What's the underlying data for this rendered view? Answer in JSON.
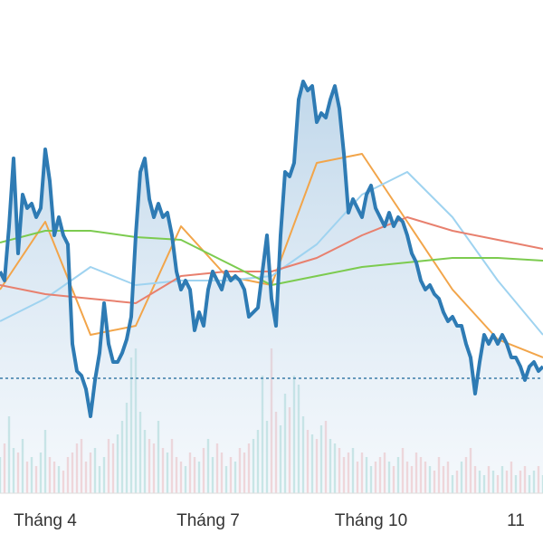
{
  "chart_data": {
    "type": "line",
    "xlim": [
      0,
      120
    ],
    "ylim": [
      0,
      545
    ],
    "y2lim": [
      0,
      545
    ],
    "xticks": [
      {
        "value": 10,
        "label": "Tháng 4"
      },
      {
        "value": 46,
        "label": "Tháng 7"
      },
      {
        "value": 82,
        "label": "Tháng 10"
      },
      {
        "value": 114,
        "label": "11"
      }
    ],
    "reference_line": 127,
    "series": [
      {
        "color": "#2e7bb4",
        "fill": true,
        "x": [
          0,
          1,
          2,
          3,
          4,
          5,
          6,
          7,
          8,
          9,
          10,
          11,
          12,
          13,
          14,
          15,
          16,
          17,
          18,
          19,
          20,
          21,
          22,
          23,
          24,
          25,
          26,
          27,
          28,
          29,
          30,
          31,
          32,
          33,
          34,
          35,
          36,
          37,
          38,
          39,
          40,
          41,
          42,
          43,
          44,
          45,
          46,
          47,
          48,
          49,
          50,
          51,
          52,
          53,
          54,
          55,
          56,
          57,
          58,
          59,
          60,
          61,
          62,
          63,
          64,
          65,
          66,
          67,
          68,
          69,
          70,
          71,
          72,
          73,
          74,
          75,
          76,
          77,
          78,
          79,
          80,
          81,
          82,
          83,
          84,
          85,
          86,
          87,
          88,
          89,
          90,
          91,
          92,
          93,
          94,
          95,
          96,
          97,
          98,
          99,
          100,
          101,
          102,
          103,
          104,
          105,
          106,
          107,
          108,
          109,
          110,
          111,
          112,
          113,
          114,
          115,
          116,
          117,
          118,
          119,
          120
        ],
        "values": [
          245,
          235,
          295,
          370,
          265,
          330,
          315,
          320,
          305,
          315,
          380,
          345,
          285,
          305,
          285,
          275,
          165,
          135,
          130,
          115,
          85,
          125,
          155,
          210,
          165,
          145,
          145,
          155,
          170,
          195,
          285,
          355,
          370,
          325,
          305,
          320,
          305,
          310,
          285,
          245,
          225,
          235,
          225,
          180,
          200,
          185,
          225,
          245,
          235,
          225,
          245,
          235,
          240,
          235,
          225,
          195,
          200,
          205,
          245,
          285,
          215,
          185,
          285,
          355,
          350,
          365,
          435,
          455,
          445,
          450,
          410,
          420,
          415,
          435,
          450,
          425,
          375,
          310,
          325,
          315,
          305,
          330,
          340,
          315,
          305,
          295,
          310,
          295,
          305,
          300,
          285,
          265,
          255,
          235,
          225,
          230,
          220,
          215,
          200,
          190,
          195,
          185,
          185,
          165,
          150,
          110,
          145,
          175,
          165,
          175,
          165,
          175,
          165,
          150,
          150,
          140,
          125,
          140,
          145,
          135,
          140
        ]
      },
      {
        "color": "#f2a54a",
        "x": [
          0,
          10,
          20,
          30,
          40,
          50,
          60,
          70,
          80,
          90,
          100,
          110,
          120
        ],
        "values": [
          225,
          300,
          175,
          185,
          295,
          240,
          230,
          365,
          375,
          300,
          225,
          170,
          150
        ]
      },
      {
        "color": "#9fd3f0",
        "x": [
          0,
          10,
          20,
          30,
          40,
          50,
          60,
          70,
          80,
          90,
          100,
          110,
          120
        ],
        "values": [
          190,
          215,
          250,
          230,
          235,
          235,
          240,
          275,
          330,
          355,
          305,
          235,
          175
        ]
      },
      {
        "color": "#e8806e",
        "x": [
          0,
          10,
          20,
          30,
          40,
          50,
          60,
          70,
          80,
          90,
          100,
          110,
          120
        ],
        "values": [
          230,
          220,
          215,
          210,
          240,
          245,
          245,
          260,
          285,
          305,
          290,
          280,
          270
        ]
      },
      {
        "color": "#7ccb4f",
        "x": [
          0,
          10,
          20,
          30,
          40,
          50,
          60,
          70,
          80,
          90,
          100,
          110,
          120
        ],
        "values": [
          277,
          290,
          290,
          283,
          280,
          255,
          230,
          240,
          250,
          255,
          260,
          260,
          257
        ]
      }
    ],
    "volume": {
      "up_color": "#8fd0c8",
      "down_color": "#f2a9a9",
      "values": [
        40,
        55,
        85,
        50,
        45,
        60,
        35,
        40,
        30,
        45,
        70,
        40,
        35,
        30,
        25,
        40,
        45,
        55,
        60,
        35,
        45,
        50,
        30,
        40,
        60,
        55,
        65,
        80,
        100,
        150,
        160,
        90,
        70,
        60,
        55,
        80,
        50,
        45,
        60,
        40,
        35,
        30,
        45,
        40,
        35,
        50,
        60,
        40,
        55,
        45,
        30,
        40,
        35,
        50,
        45,
        55,
        60,
        70,
        130,
        80,
        160,
        90,
        75,
        110,
        95,
        130,
        120,
        85,
        70,
        65,
        60,
        75,
        80,
        60,
        55,
        50,
        40,
        45,
        50,
        35,
        45,
        40,
        30,
        35,
        40,
        45,
        35,
        30,
        40,
        50,
        35,
        30,
        45,
        40,
        35,
        30,
        25,
        40,
        30,
        35,
        20,
        25,
        35,
        40,
        50,
        30,
        25,
        20,
        30,
        25,
        20,
        30,
        25,
        35,
        20,
        25,
        30,
        20,
        25,
        30,
        20
      ]
    }
  }
}
